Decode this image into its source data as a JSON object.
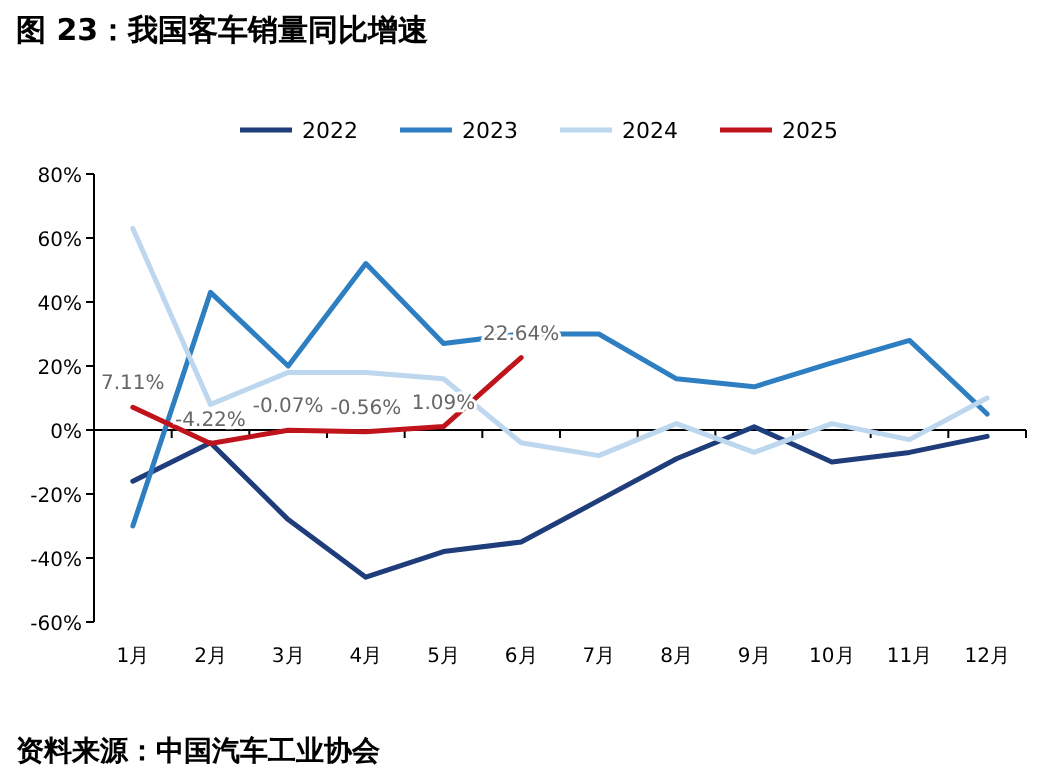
{
  "chart_data": {
    "type": "line",
    "title": "图 23：我国客车销量同比增速",
    "categories": [
      "1月",
      "2月",
      "3月",
      "4月",
      "5月",
      "6月",
      "7月",
      "8月",
      "9月",
      "10月",
      "11月",
      "12月"
    ],
    "series": [
      {
        "name": "2022",
        "color": "#1f3d7a",
        "values": [
          -16,
          -4,
          -28,
          -46,
          -38,
          -35,
          -22,
          -9,
          1,
          -10,
          -7,
          -2
        ]
      },
      {
        "name": "2023",
        "color": "#2e7fc1",
        "values": [
          -30,
          43,
          20,
          52,
          27,
          30,
          30,
          16,
          13.5,
          21,
          28,
          5
        ]
      },
      {
        "name": "2024",
        "color": "#bdd7ee",
        "values": [
          63,
          8,
          18,
          18,
          16,
          -4,
          -8,
          2,
          -7,
          2,
          -3,
          10
        ]
      },
      {
        "name": "2025",
        "color": "#c0141c",
        "values": [
          7.11,
          -4.22,
          -0.07,
          -0.56,
          1.09,
          22.64,
          null,
          null,
          null,
          null,
          null,
          null
        ],
        "value_labels": [
          "7.11%",
          "-4.22%",
          "-0.07%",
          "-0.56%",
          "1.09%",
          "22.64%",
          null,
          null,
          null,
          null,
          null,
          null
        ]
      }
    ],
    "ylim": [
      -60,
      80
    ],
    "yticks": [
      {
        "value": -60,
        "label": "-60%"
      },
      {
        "value": -40,
        "label": "-40%"
      },
      {
        "value": -20,
        "label": "-20%"
      },
      {
        "value": 0,
        "label": "0%"
      },
      {
        "value": 20,
        "label": "20%"
      },
      {
        "value": 40,
        "label": "40%"
      },
      {
        "value": 60,
        "label": "60%"
      },
      {
        "value": 80,
        "label": "80%"
      }
    ],
    "legend": "top",
    "marker": "none",
    "line_style": "solid",
    "annotations": [
      "资料来源：中国汽车工业协会"
    ]
  }
}
